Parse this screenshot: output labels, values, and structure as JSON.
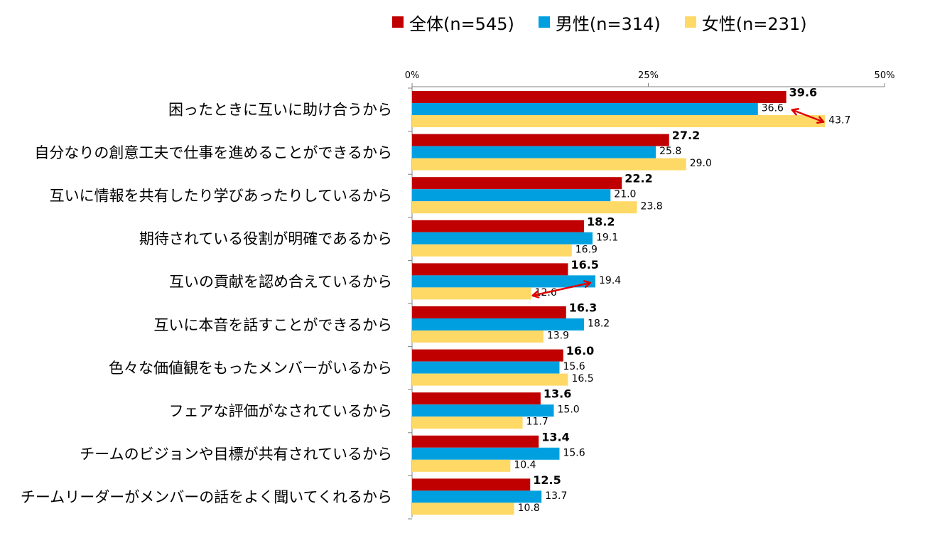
{
  "legend": {
    "total": "全体(n=545)",
    "male": "男性(n=314)",
    "female": "女性(n=231)"
  },
  "chart_data": {
    "type": "bar",
    "orientation": "horizontal",
    "title": "",
    "xlabel": "",
    "ylabel": "",
    "xlim": [
      0,
      50
    ],
    "ticks": [
      {
        "value": 0,
        "label": "0%"
      },
      {
        "value": 25,
        "label": "25%"
      },
      {
        "value": 50,
        "label": "50%"
      }
    ],
    "grid": false,
    "legend_position": "top-right",
    "categories": [
      "困ったときに互いに助け合うから",
      "自分なりの創意工夫で仕事を進めることができるから",
      "互いに情報を共有したり学びあったりしているから",
      "期待されている役割が明確であるから",
      "互いの貢献を認め合えているから",
      "互いに本音を話すことができるから",
      "色々な価値観をもったメンバーがいるから",
      "フェアな評価がなされているから",
      "チームのビジョンや目標が共有されているから",
      "チームリーダーがメンバーの話をよく聞いてくれるから"
    ],
    "series": [
      {
        "name": "全体(n=545)",
        "color": "#c00000",
        "bold_labels": true,
        "values": [
          39.6,
          27.2,
          22.2,
          18.2,
          16.5,
          16.3,
          16.0,
          13.6,
          13.4,
          12.5
        ],
        "labels": [
          "39.6",
          "27.2",
          "22.2",
          "18.2",
          "16.5",
          "16.3",
          "16.0",
          "13.6",
          "13.4",
          "12.5"
        ]
      },
      {
        "name": "男性(n=314)",
        "color": "#00a0e0",
        "bold_labels": false,
        "values": [
          36.6,
          25.8,
          21.0,
          19.1,
          19.4,
          18.2,
          15.6,
          15.0,
          15.6,
          13.7
        ],
        "labels": [
          "36.6",
          "25.8",
          "21.0",
          "19.1",
          "19.4",
          "18.2",
          "15.6",
          "15.0",
          "15.6",
          "13.7"
        ]
      },
      {
        "name": "女性(n=231)",
        "color": "#ffd966",
        "bold_labels": false,
        "values": [
          43.7,
          29.0,
          23.8,
          16.9,
          12.6,
          13.9,
          16.5,
          11.7,
          10.4,
          10.8
        ],
        "labels": [
          "43.7",
          "29.0",
          "23.8",
          "16.9",
          "12.6",
          "13.9",
          "16.5",
          "11.7",
          "10.4",
          "10.8"
        ]
      }
    ],
    "annotations": [
      {
        "type": "double-arrow",
        "category_index": 0,
        "from_series": 1,
        "to_series": 2,
        "color": "#e00000"
      },
      {
        "type": "double-arrow",
        "category_index": 4,
        "from_series": 2,
        "to_series": 1,
        "color": "#e00000"
      }
    ]
  }
}
